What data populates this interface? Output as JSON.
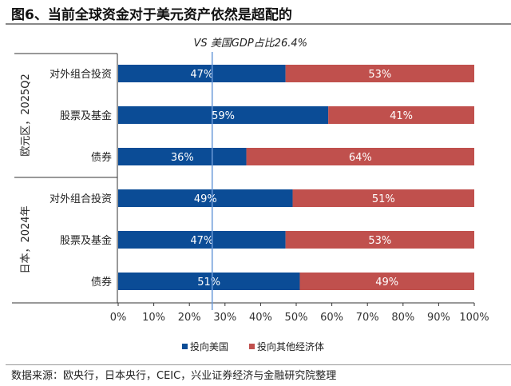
{
  "title": "图6、当前全球资金对于美元资产依然是超配的",
  "source": "数据来源：欧央行，日本央行，CEIC，兴业证券经济与金融研究院整理",
  "chart_data": {
    "type": "bar",
    "stacked": true,
    "orientation": "horizontal",
    "groups": [
      "欧元区，2025Q2",
      "日本，2024年"
    ],
    "categories": [
      "对外组合投资",
      "股票及基金",
      "债券",
      "对外组合投资",
      "股票及基金",
      "债券"
    ],
    "category_group": [
      0,
      0,
      0,
      1,
      1,
      1
    ],
    "series": [
      {
        "name": "投向美国",
        "values": [
          47,
          59,
          36,
          49,
          47,
          51
        ],
        "color": "#0B4C96"
      },
      {
        "name": "投向其他经济体",
        "values": [
          53,
          41,
          64,
          51,
          53,
          49
        ],
        "color": "#C0504D"
      }
    ],
    "data_labels": [
      [
        "47%",
        "59%",
        "36%",
        "49%",
        "47%",
        "51%"
      ],
      [
        "53%",
        "41%",
        "64%",
        "51%",
        "53%",
        "49%"
      ]
    ],
    "xlim": [
      0,
      100
    ],
    "xticks": [
      "0%",
      "10%",
      "20%",
      "30%",
      "40%",
      "50%",
      "60%",
      "70%",
      "80%",
      "90%",
      "100%"
    ],
    "reference_line": {
      "value": 26.4,
      "label": "VS 美国GDP占比26.4%",
      "color": "#6A9AD8"
    },
    "legend_position": "bottom",
    "grid": false
  }
}
